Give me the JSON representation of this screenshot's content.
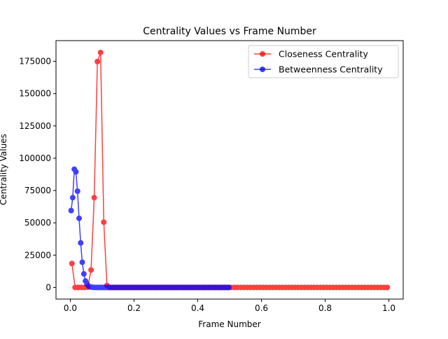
{
  "chart_data": {
    "type": "line",
    "title": "Centrality Values vs Frame Number",
    "xlabel": "Frame Number",
    "ylabel": "Centrality Values",
    "xlim": [
      -0.045,
      1.045
    ],
    "ylim": [
      -9000,
      191000
    ],
    "xticks": [
      0.0,
      0.2,
      0.4,
      0.6,
      0.8,
      1.0
    ],
    "xtick_labels": [
      "0.0",
      "0.2",
      "0.4",
      "0.6",
      "0.8",
      "1.0"
    ],
    "yticks": [
      0,
      25000,
      50000,
      75000,
      100000,
      125000,
      150000,
      175000
    ],
    "ytick_labels": [
      "0",
      "25000",
      "50000",
      "75000",
      "100000",
      "125000",
      "150000",
      "175000"
    ],
    "grid": false,
    "legend_position": "upper right",
    "series": [
      {
        "name": "Closeness Centrality",
        "color": "#ff0000",
        "x": [
          0.005,
          0.015,
          0.025,
          0.035,
          0.045,
          0.055,
          0.065,
          0.075,
          0.085,
          0.095,
          0.105,
          0.115,
          0.125,
          0.135,
          0.145,
          0.155,
          0.165,
          0.175,
          0.185,
          0.195,
          0.205,
          0.215,
          0.225,
          0.235,
          0.245,
          0.255,
          0.265,
          0.275,
          0.285,
          0.295,
          0.305,
          0.315,
          0.325,
          0.335,
          0.345,
          0.355,
          0.365,
          0.375,
          0.385,
          0.395,
          0.405,
          0.415,
          0.425,
          0.435,
          0.445,
          0.455,
          0.465,
          0.475,
          0.485,
          0.495,
          0.505,
          0.515,
          0.525,
          0.535,
          0.545,
          0.555,
          0.565,
          0.575,
          0.585,
          0.595,
          0.605,
          0.615,
          0.625,
          0.635,
          0.645,
          0.655,
          0.665,
          0.675,
          0.685,
          0.695,
          0.705,
          0.715,
          0.725,
          0.735,
          0.745,
          0.755,
          0.765,
          0.775,
          0.785,
          0.795,
          0.805,
          0.815,
          0.825,
          0.835,
          0.845,
          0.855,
          0.865,
          0.875,
          0.885,
          0.895,
          0.905,
          0.915,
          0.925,
          0.935,
          0.945,
          0.955,
          0.965,
          0.975,
          0.985,
          0.995
        ],
        "y": [
          18500,
          0,
          0,
          0,
          0,
          200,
          13500,
          69500,
          174800,
          181800,
          50500,
          1500,
          0,
          0,
          0,
          0,
          0,
          0,
          0,
          0,
          0,
          0,
          0,
          0,
          0,
          0,
          0,
          0,
          0,
          0,
          0,
          0,
          0,
          0,
          0,
          0,
          0,
          0,
          0,
          0,
          0,
          0,
          0,
          0,
          0,
          0,
          0,
          0,
          0,
          0,
          0,
          0,
          0,
          0,
          0,
          0,
          0,
          0,
          0,
          0,
          0,
          0,
          0,
          0,
          0,
          0,
          0,
          0,
          0,
          0,
          0,
          0,
          0,
          0,
          0,
          0,
          0,
          0,
          0,
          0,
          0,
          0,
          0,
          0,
          0,
          0,
          0,
          0,
          0,
          0,
          0,
          0,
          0,
          0,
          0,
          0,
          0,
          0,
          0,
          0
        ]
      },
      {
        "name": "Betweenness Centrality",
        "color": "#0000ff",
        "x": [
          0.0025,
          0.0075,
          0.0125,
          0.0175,
          0.0225,
          0.0275,
          0.0325,
          0.0375,
          0.0425,
          0.0475,
          0.0525,
          0.0575,
          0.0625,
          0.0675,
          0.0725,
          0.0775,
          0.0825,
          0.0875,
          0.0925,
          0.0975,
          0.1025,
          0.1075,
          0.1125,
          0.1175,
          0.1225,
          0.1275,
          0.1325,
          0.1375,
          0.1425,
          0.1475,
          0.1525,
          0.1575,
          0.1625,
          0.1675,
          0.1725,
          0.1775,
          0.1825,
          0.1875,
          0.1925,
          0.1975,
          0.2025,
          0.2075,
          0.2125,
          0.2175,
          0.2225,
          0.2275,
          0.2325,
          0.2375,
          0.2425,
          0.2475,
          0.2525,
          0.2575,
          0.2625,
          0.2675,
          0.2725,
          0.2775,
          0.2825,
          0.2875,
          0.2925,
          0.2975,
          0.3025,
          0.3075,
          0.3125,
          0.3175,
          0.3225,
          0.3275,
          0.3325,
          0.3375,
          0.3425,
          0.3475,
          0.3525,
          0.3575,
          0.3625,
          0.3675,
          0.3725,
          0.3775,
          0.3825,
          0.3875,
          0.3925,
          0.3975,
          0.4025,
          0.4075,
          0.4125,
          0.4175,
          0.4225,
          0.4275,
          0.4325,
          0.4375,
          0.4425,
          0.4475,
          0.4525,
          0.4575,
          0.4625,
          0.4675,
          0.4725,
          0.4775,
          0.4825,
          0.4875,
          0.4925,
          0.4975
        ],
        "y": [
          59500,
          69500,
          91500,
          89500,
          74500,
          53500,
          34500,
          19500,
          10500,
          5000,
          2500,
          1000,
          500,
          200,
          100,
          0,
          0,
          0,
          0,
          0,
          0,
          0,
          0,
          0,
          0,
          0,
          0,
          0,
          0,
          0,
          0,
          0,
          0,
          0,
          0,
          0,
          0,
          0,
          0,
          0,
          0,
          0,
          0,
          0,
          0,
          0,
          0,
          0,
          0,
          0,
          0,
          0,
          0,
          0,
          0,
          0,
          0,
          0,
          0,
          0,
          0,
          0,
          0,
          0,
          0,
          0,
          0,
          0,
          0,
          0,
          0,
          0,
          0,
          0,
          0,
          0,
          0,
          0,
          0,
          0,
          0,
          0,
          0,
          0,
          0,
          0,
          0,
          0,
          0,
          0,
          0,
          0,
          0,
          0,
          0,
          0,
          0,
          0,
          0,
          0
        ]
      }
    ]
  }
}
